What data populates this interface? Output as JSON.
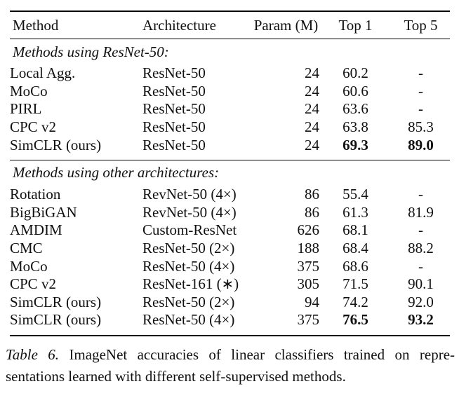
{
  "table": {
    "columns": {
      "method": "Method",
      "architecture": "Architecture",
      "param": "Param (M)",
      "top1": "Top 1",
      "top5": "Top 5"
    },
    "sections": [
      {
        "header": "Methods using ResNet-50:",
        "rows": [
          {
            "method": "Local Agg.",
            "architecture": "ResNet-50",
            "param": "24",
            "top1": "60.2",
            "top5": "-",
            "bold": false
          },
          {
            "method": "MoCo",
            "architecture": "ResNet-50",
            "param": "24",
            "top1": "60.6",
            "top5": "-",
            "bold": false
          },
          {
            "method": "PIRL",
            "architecture": "ResNet-50",
            "param": "24",
            "top1": "63.6",
            "top5": "-",
            "bold": false
          },
          {
            "method": "CPC v2",
            "architecture": "ResNet-50",
            "param": "24",
            "top1": "63.8",
            "top5": "85.3",
            "bold": false
          },
          {
            "method": "SimCLR (ours)",
            "architecture": "ResNet-50",
            "param": "24",
            "top1": "69.3",
            "top5": "89.0",
            "bold": true
          }
        ]
      },
      {
        "header": "Methods using other architectures:",
        "rows": [
          {
            "method": "Rotation",
            "architecture": "RevNet-50 (4×)",
            "param": "86",
            "top1": "55.4",
            "top5": "-",
            "bold": false
          },
          {
            "method": "BigBiGAN",
            "architecture": "RevNet-50 (4×)",
            "param": "86",
            "top1": "61.3",
            "top5": "81.9",
            "bold": false
          },
          {
            "method": "AMDIM",
            "architecture": "Custom-ResNet",
            "param": "626",
            "top1": "68.1",
            "top5": "-",
            "bold": false
          },
          {
            "method": "CMC",
            "architecture": "ResNet-50 (2×)",
            "param": "188",
            "top1": "68.4",
            "top5": "88.2",
            "bold": false
          },
          {
            "method": "MoCo",
            "architecture": "ResNet-50 (4×)",
            "param": "375",
            "top1": "68.6",
            "top5": "-",
            "bold": false
          },
          {
            "method": "CPC v2",
            "architecture": "ResNet-161 (∗)",
            "param": "305",
            "top1": "71.5",
            "top5": "90.1",
            "bold": false
          },
          {
            "method": "SimCLR (ours)",
            "architecture": "ResNet-50 (2×)",
            "param": "94",
            "top1": "74.2",
            "top5": "92.0",
            "bold": false
          },
          {
            "method": "SimCLR (ours)",
            "architecture": "ResNet-50 (4×)",
            "param": "375",
            "top1": "76.5",
            "top5": "93.2",
            "bold": true
          }
        ]
      }
    ]
  },
  "caption": {
    "label": "Table 6.",
    "line1_rest": "ImageNet accuracies of linear classifiers trained on repre-",
    "line2": "sentations learned with different self-supervised methods."
  }
}
